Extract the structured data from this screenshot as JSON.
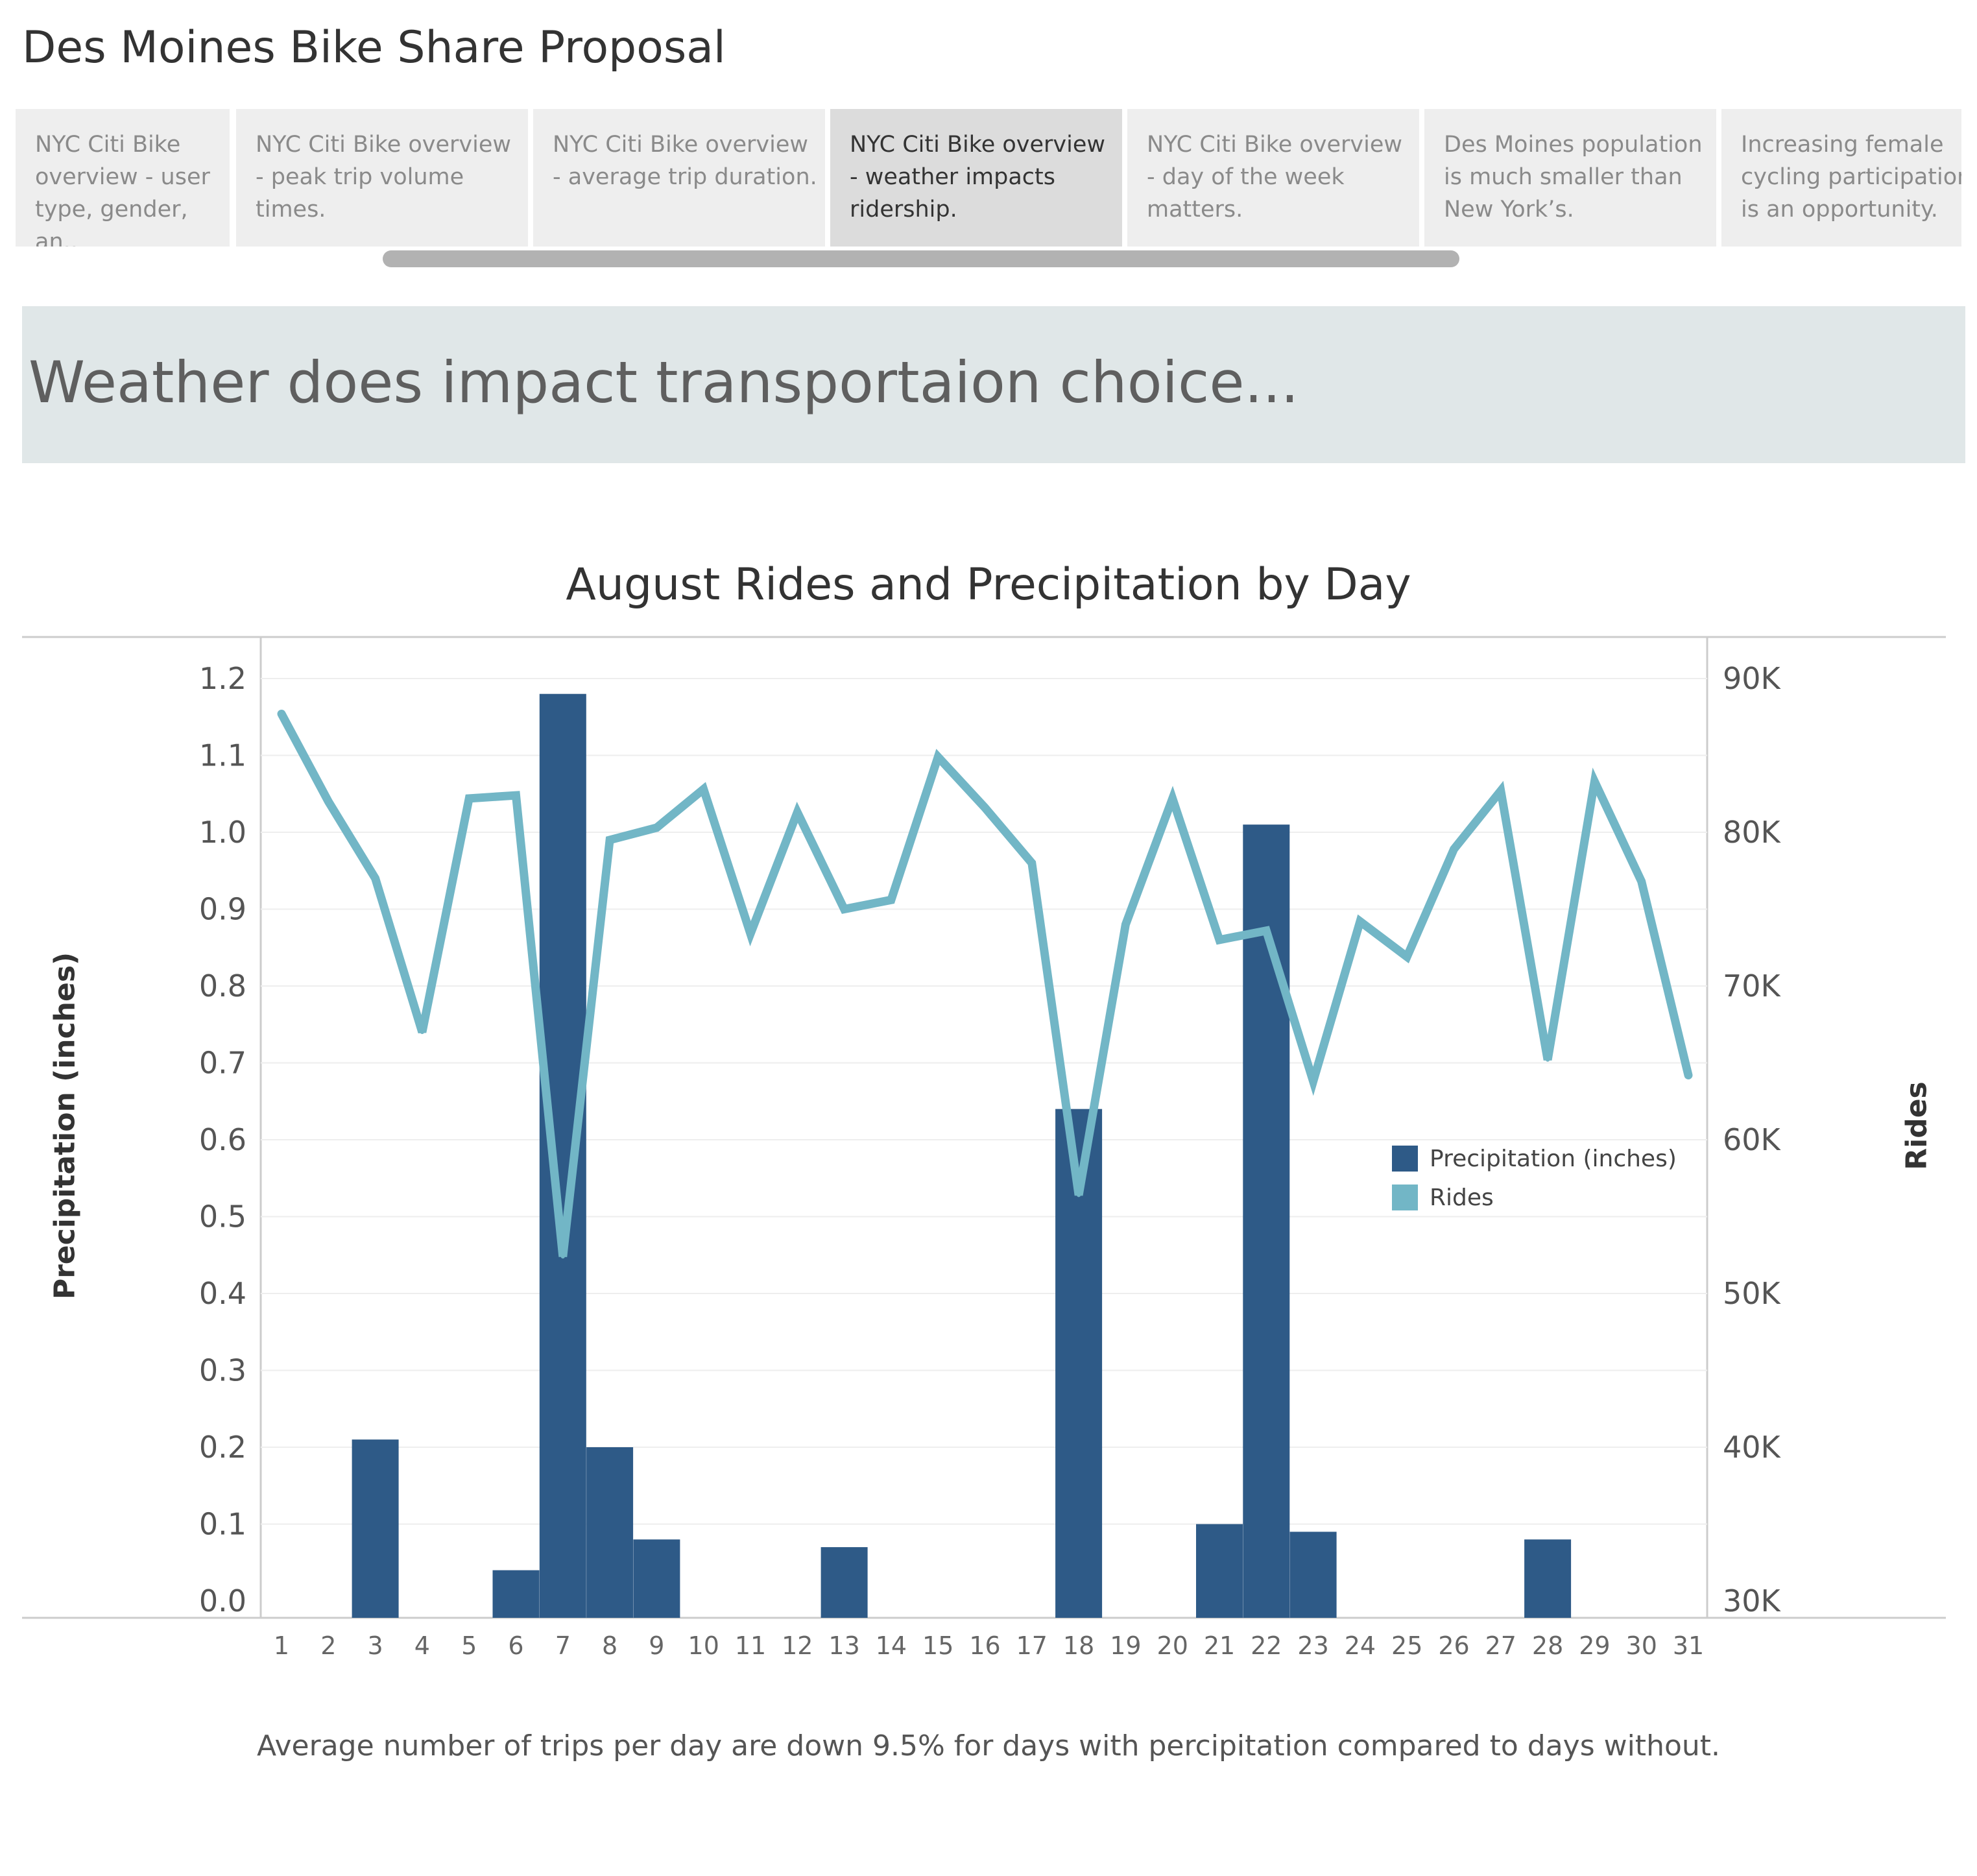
{
  "story": {
    "title": "Des Moines Bike Share Proposal",
    "points": [
      {
        "label": "NYC Citi Bike overview - user type, gender, an..",
        "active": false
      },
      {
        "label": "NYC Citi Bike overview - peak trip volume times.",
        "active": false
      },
      {
        "label": "NYC Citi Bike overview - average trip duration.",
        "active": false
      },
      {
        "label": "NYC Citi Bike overview - weather impacts ridership.",
        "active": true
      },
      {
        "label": "NYC Citi Bike overview - day of the week matters.",
        "active": false
      },
      {
        "label": "Des Moines population is much smaller than New York’s.",
        "active": false
      },
      {
        "label": "Increasing female cycling participation is an opportunity.",
        "active": false
      }
    ]
  },
  "caption": "Weather does impact transportaion choice...",
  "footnote": "Average number of trips per day are down 9.5% for days with percipitation compared to days without.",
  "colors": {
    "precipitation": "#2e5a87",
    "rides": "#72b6c6",
    "gridline": "#eeeeee",
    "axis": "#cccccc",
    "tick_text": "#555555"
  },
  "chart_data": {
    "type": "bar",
    "title": "August Rides and Precipitation by Day",
    "xlabel": "",
    "ylabel": "Precipitation (inches)",
    "y2label": "Rides",
    "categories": [
      "1",
      "2",
      "3",
      "4",
      "5",
      "6",
      "7",
      "8",
      "9",
      "10",
      "11",
      "12",
      "13",
      "14",
      "15",
      "16",
      "17",
      "18",
      "19",
      "20",
      "21",
      "22",
      "23",
      "24",
      "25",
      "26",
      "27",
      "28",
      "29",
      "30",
      "31"
    ],
    "ylim": [
      0,
      1.2
    ],
    "y2lim": [
      30000,
      90000
    ],
    "yticks": [
      "0.0",
      "0.1",
      "0.2",
      "0.3",
      "0.4",
      "0.5",
      "0.6",
      "0.7",
      "0.8",
      "0.9",
      "1.0",
      "1.1",
      "1.2"
    ],
    "y2ticks": [
      "30K",
      "40K",
      "50K",
      "60K",
      "70K",
      "80K",
      "90K"
    ],
    "legend_position": "right",
    "grid": true,
    "series": [
      {
        "name": "Precipitation (inches)",
        "type": "bar",
        "axis": "left",
        "values": [
          0,
          0,
          0.21,
          0,
          0,
          0.04,
          1.18,
          0.2,
          0.08,
          0,
          0,
          0,
          0.07,
          0,
          0,
          0,
          0,
          0.64,
          0,
          0,
          0.1,
          1.01,
          0.09,
          0,
          0,
          0,
          0,
          0.08,
          0,
          0,
          0
        ]
      },
      {
        "name": "Rides",
        "type": "line",
        "axis": "right",
        "values": [
          87700,
          82000,
          77000,
          67000,
          82200,
          82400,
          52400,
          79500,
          80300,
          82800,
          73400,
          81300,
          75000,
          75600,
          84900,
          81600,
          78000,
          56400,
          74000,
          82200,
          73000,
          73600,
          63800,
          74200,
          71900,
          78900,
          82700,
          65200,
          83300,
          76800,
          64200
        ]
      }
    ]
  }
}
